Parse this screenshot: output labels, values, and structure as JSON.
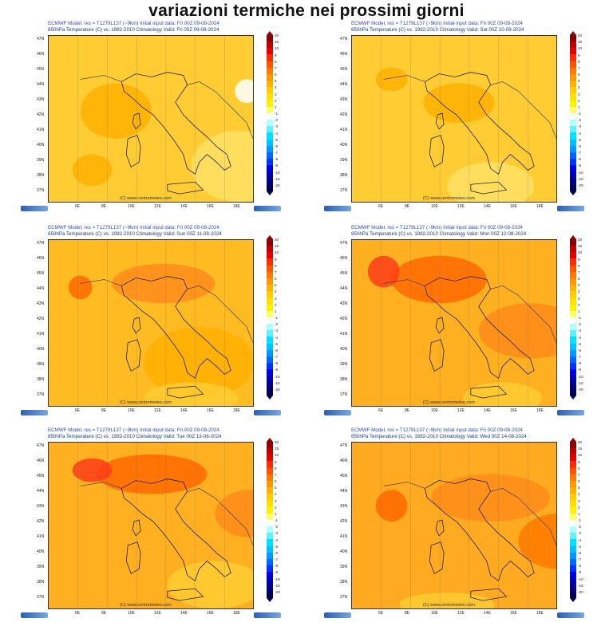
{
  "title": "variazioni termiche nei prossimi giorni",
  "header_line1": "ECMWF Model, res = T1279L137 (~9km)   Initial input data: Fri 00Z 09-08-2024",
  "header_line2_prefix": "850hPa Temperature (C) vs. 1982-2010 Climatology",
  "credit": "(C) www.centrometeo.com",
  "lat_labels": [
    "47N",
    "46N",
    "45N",
    "44N",
    "43N",
    "42N",
    "41N",
    "40N",
    "39N",
    "38N",
    "37N"
  ],
  "lon_labels": [
    "6E",
    "8E",
    "10E",
    "12E",
    "14E",
    "16E",
    "18E"
  ],
  "scale_labels": [
    "20",
    "15",
    "10",
    "9",
    "8",
    "7",
    "6",
    "5",
    "4",
    "3",
    "2",
    "1",
    "-1",
    "-2",
    "-3",
    "-4",
    "-5",
    "-6",
    "-7",
    "-8",
    "-9",
    "-10",
    "-15",
    "-20"
  ],
  "scale_colors": [
    "#8b0000",
    "#c00000",
    "#e00000",
    "#ff2a00",
    "#ff5500",
    "#ff7a00",
    "#ff9900",
    "#ffb000",
    "#ffcc00",
    "#ffe000",
    "#fff200",
    "#ffff66",
    "#ffffff",
    "#b0ffff",
    "#66f0ff",
    "#00e0ff",
    "#00c0ff",
    "#0099ff",
    "#0066ff",
    "#0033ff",
    "#0000e0",
    "#0000b0",
    "#000080",
    "#000050"
  ],
  "panels": [
    {
      "valid": "Valid: Fri 00Z 09-08-2024"
    },
    {
      "valid": "Valid: Sat 00Z 10-08-2024"
    },
    {
      "valid": "Valid: Sun 00Z 11-08-2024"
    },
    {
      "valid": "Valid: Mon 00Z 12-08-2024"
    },
    {
      "valid": "Valid: Tue 00Z 13-08-2024"
    },
    {
      "valid": "Valid: Wed 00Z 14-08-2024"
    }
  ]
}
